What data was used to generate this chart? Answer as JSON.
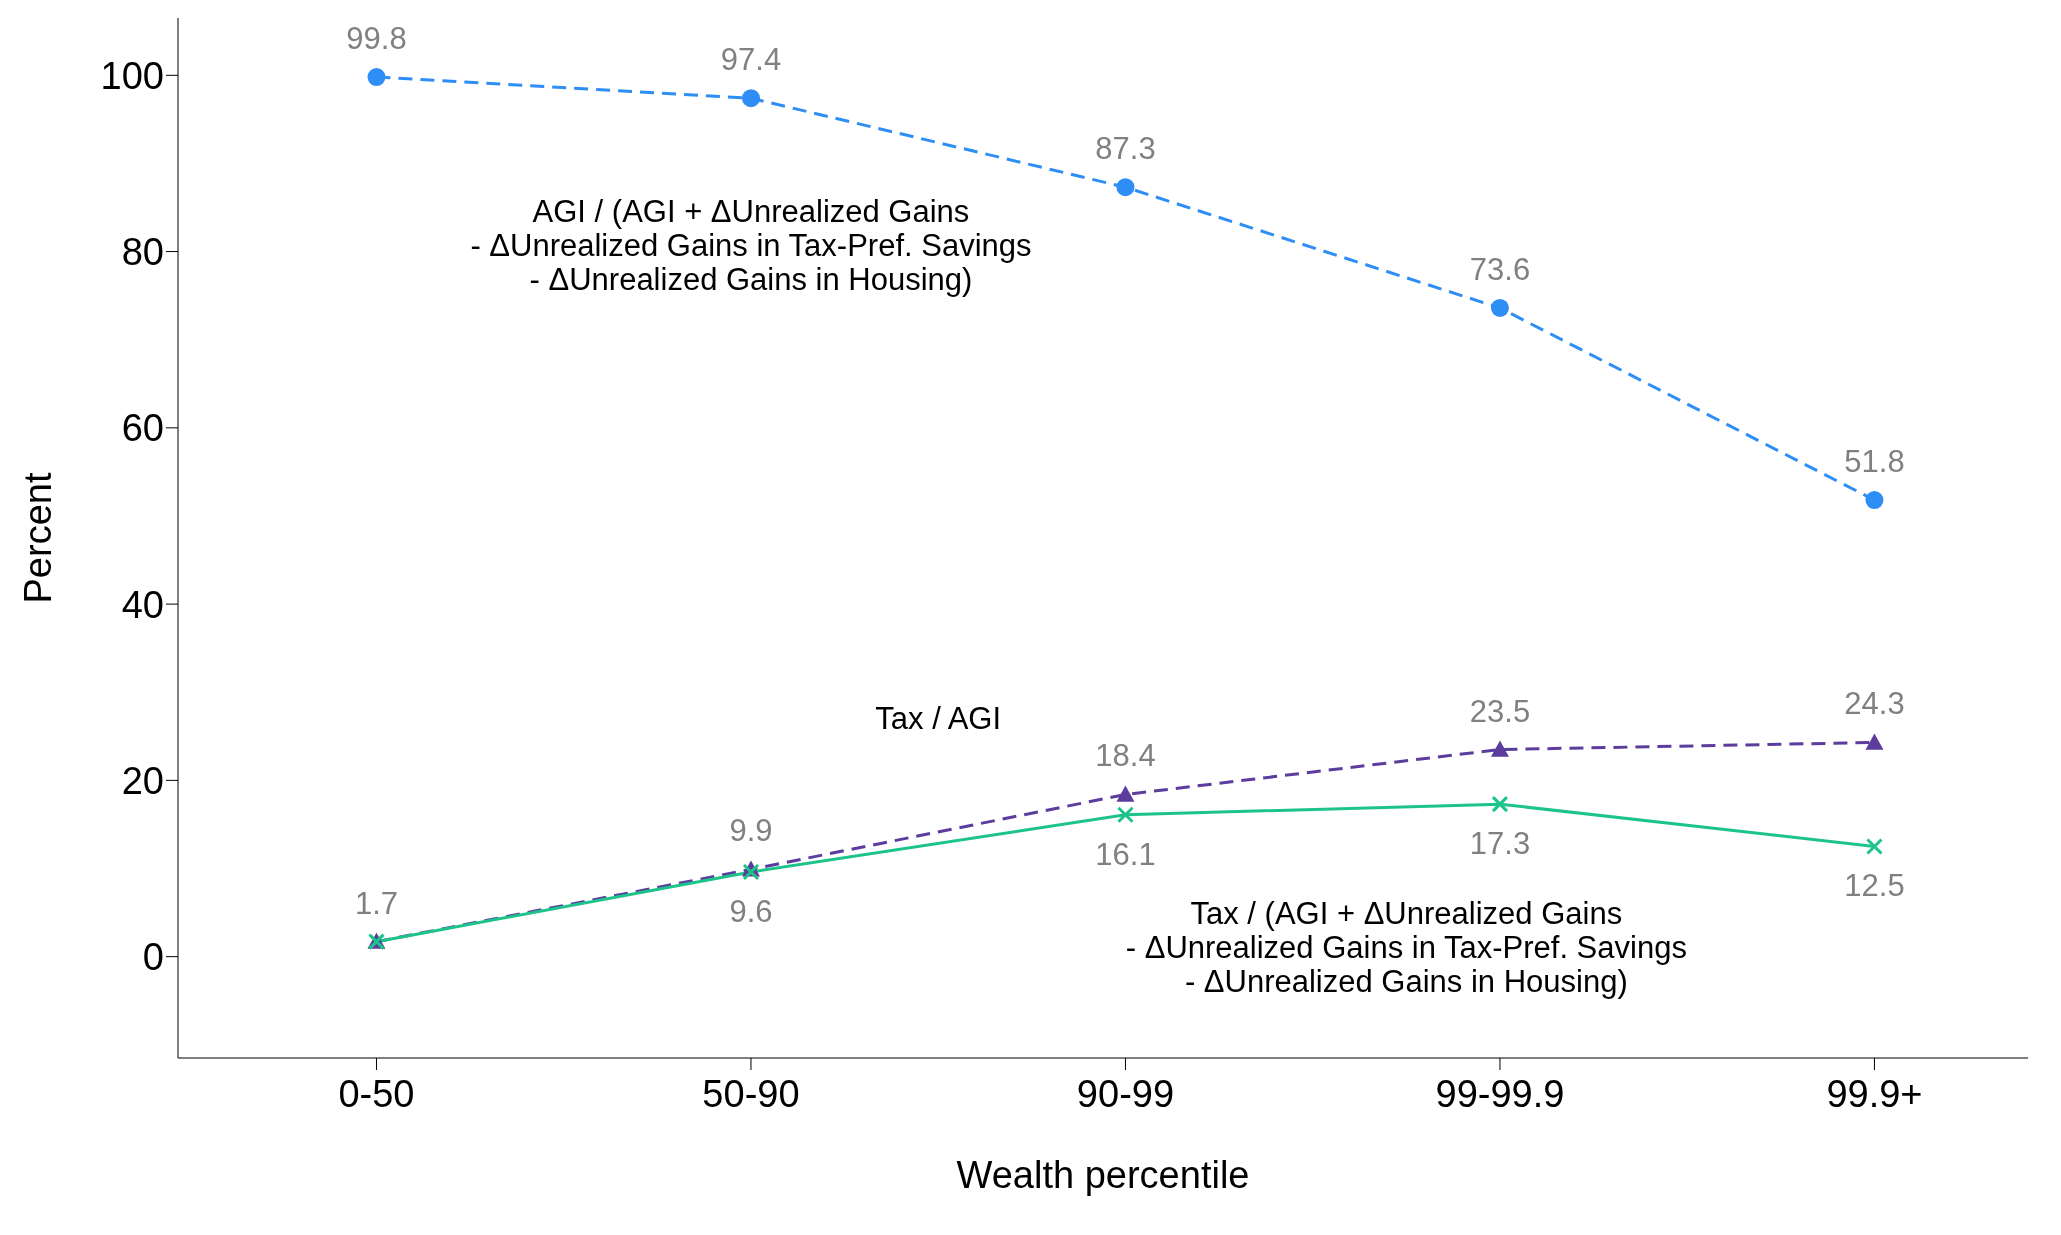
{
  "chart_data": {
    "type": "line",
    "xlabel": "Wealth percentile",
    "ylabel": "Percent",
    "categories": [
      "0-50",
      "50-90",
      "90-99",
      "99-99.9",
      "99.9+"
    ],
    "series": [
      {
        "name": "AGI / (AGI + ΔUnrealized Gains\n- ΔUnrealized Gains in Tax-Pref. Savings\n- ΔUnrealized Gains in Housing)",
        "color": "#2e8ef5",
        "marker": "circle",
        "line_style": "dashed",
        "values": [
          99.8,
          97.4,
          87.3,
          73.6,
          51.8
        ],
        "value_labels": [
          "99.8",
          "97.4",
          "87.3",
          "73.6",
          "51.8"
        ]
      },
      {
        "name": "Tax / AGI",
        "color": "#5c3d9e",
        "marker": "triangle",
        "line_style": "dashed",
        "values": [
          1.7,
          9.9,
          18.4,
          23.5,
          24.3
        ],
        "value_labels": [
          "1.7",
          "9.9",
          "18.4",
          "23.5",
          "24.3"
        ]
      },
      {
        "name": "Tax / (AGI + ΔUnrealized Gains\n- ΔUnrealized Gains in Tax-Pref. Savings\n- ΔUnrealized Gains in Housing)",
        "color": "#1dc48a",
        "marker": "cross",
        "line_style": "solid",
        "values": [
          1.7,
          9.6,
          16.1,
          17.3,
          12.5
        ],
        "value_labels": [
          null,
          "9.6",
          "16.1",
          "17.3",
          "12.5"
        ]
      }
    ],
    "ylim": [
      -11.5,
      106.5
    ],
    "yticks": [
      0,
      20,
      40,
      60,
      80,
      100
    ]
  }
}
